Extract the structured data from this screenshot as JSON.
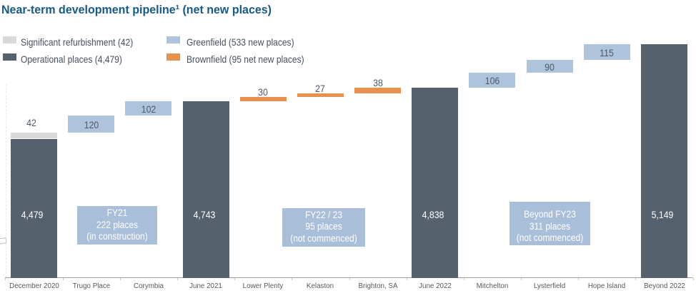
{
  "title": {
    "text": "Near-term development pipeline¹ (net new places)"
  },
  "legend": [
    {
      "label": "Significant refurbishment (42)",
      "series": "refurbishment"
    },
    {
      "label": "Operational places (4,479)",
      "series": "operational"
    },
    {
      "label": "Greenfield (533 new places)",
      "series": "greenfield"
    },
    {
      "label": "Brownfield (95 net new places)",
      "series": "brownfield"
    }
  ],
  "colors": {
    "title": "#175a87",
    "refurbishment": "#d9d9d9",
    "operational": "#56616e",
    "greenfield": "#aec4dc",
    "brownfield": "#e8914e",
    "annotation": "#a9bed9",
    "axis": "#a6a6a6",
    "value_label": "#4e5864",
    "category_label": "#595959"
  },
  "chart_data": {
    "type": "waterfall",
    "title": "Near-term development pipeline (net new places)",
    "categories": [
      "December 2020",
      "Trugo Place",
      "Corymbia",
      "June 2021",
      "Lower Plenty",
      "Kelaston",
      "Brighton, SA",
      "June 2022",
      "Mitchelton",
      "Lysterfield",
      "Hope Island",
      "Beyond 2022"
    ],
    "bars": [
      {
        "category": "December 2020",
        "series": "operational",
        "start": 0,
        "end": 4479,
        "label": "4,479",
        "label_style": "inside-white"
      },
      {
        "category": "December 2020",
        "series": "refurbishment",
        "start": 4479,
        "end": 4521,
        "label": "42",
        "label_style": "above"
      },
      {
        "category": "Trugo Place",
        "series": "greenfield",
        "start": 4521,
        "end": 4641,
        "label": "120",
        "label_style": "inside-dark"
      },
      {
        "category": "Corymbia",
        "series": "greenfield",
        "start": 4641,
        "end": 4743,
        "label": "102",
        "label_style": "inside-dark"
      },
      {
        "category": "June 2021",
        "series": "operational",
        "start": 0,
        "end": 4743,
        "label": "4,743",
        "label_style": "inside-white"
      },
      {
        "category": "Lower Plenty",
        "series": "brownfield",
        "start": 4743,
        "end": 4773,
        "label": "30",
        "label_style": "above"
      },
      {
        "category": "Kelaston",
        "series": "brownfield",
        "start": 4773,
        "end": 4800,
        "label": "27",
        "label_style": "above"
      },
      {
        "category": "Brighton, SA",
        "series": "brownfield",
        "start": 4800,
        "end": 4838,
        "label": "38",
        "label_style": "above"
      },
      {
        "category": "June 2022",
        "series": "operational",
        "start": 0,
        "end": 4838,
        "label": "4,838",
        "label_style": "inside-white"
      },
      {
        "category": "Mitchelton",
        "series": "greenfield",
        "start": 4838,
        "end": 4944,
        "label": "106",
        "label_style": "inside-dark"
      },
      {
        "category": "Lysterfield",
        "series": "greenfield",
        "start": 4944,
        "end": 5034,
        "label": "90",
        "label_style": "inside-dark"
      },
      {
        "category": "Hope Island",
        "series": "greenfield",
        "start": 5034,
        "end": 5149,
        "label": "115",
        "label_style": "inside-dark"
      },
      {
        "category": "Beyond 2022",
        "series": "operational",
        "start": 0,
        "end": 5149,
        "label": "5,149",
        "label_style": "inside-white"
      }
    ],
    "annotations": [
      {
        "lines": [
          "FY21",
          "222 places",
          "(in construction)"
        ]
      },
      {
        "lines": [
          "FY22 / 23",
          "95 places",
          "(not commenced)"
        ]
      },
      {
        "lines": [
          "Beyond FY23",
          "311 places",
          "(not commenced)"
        ]
      }
    ],
    "ylim": [
      3496,
      5460
    ],
    "grid": false,
    "legend_position": "top-left",
    "xlabel": "",
    "ylabel": ""
  }
}
